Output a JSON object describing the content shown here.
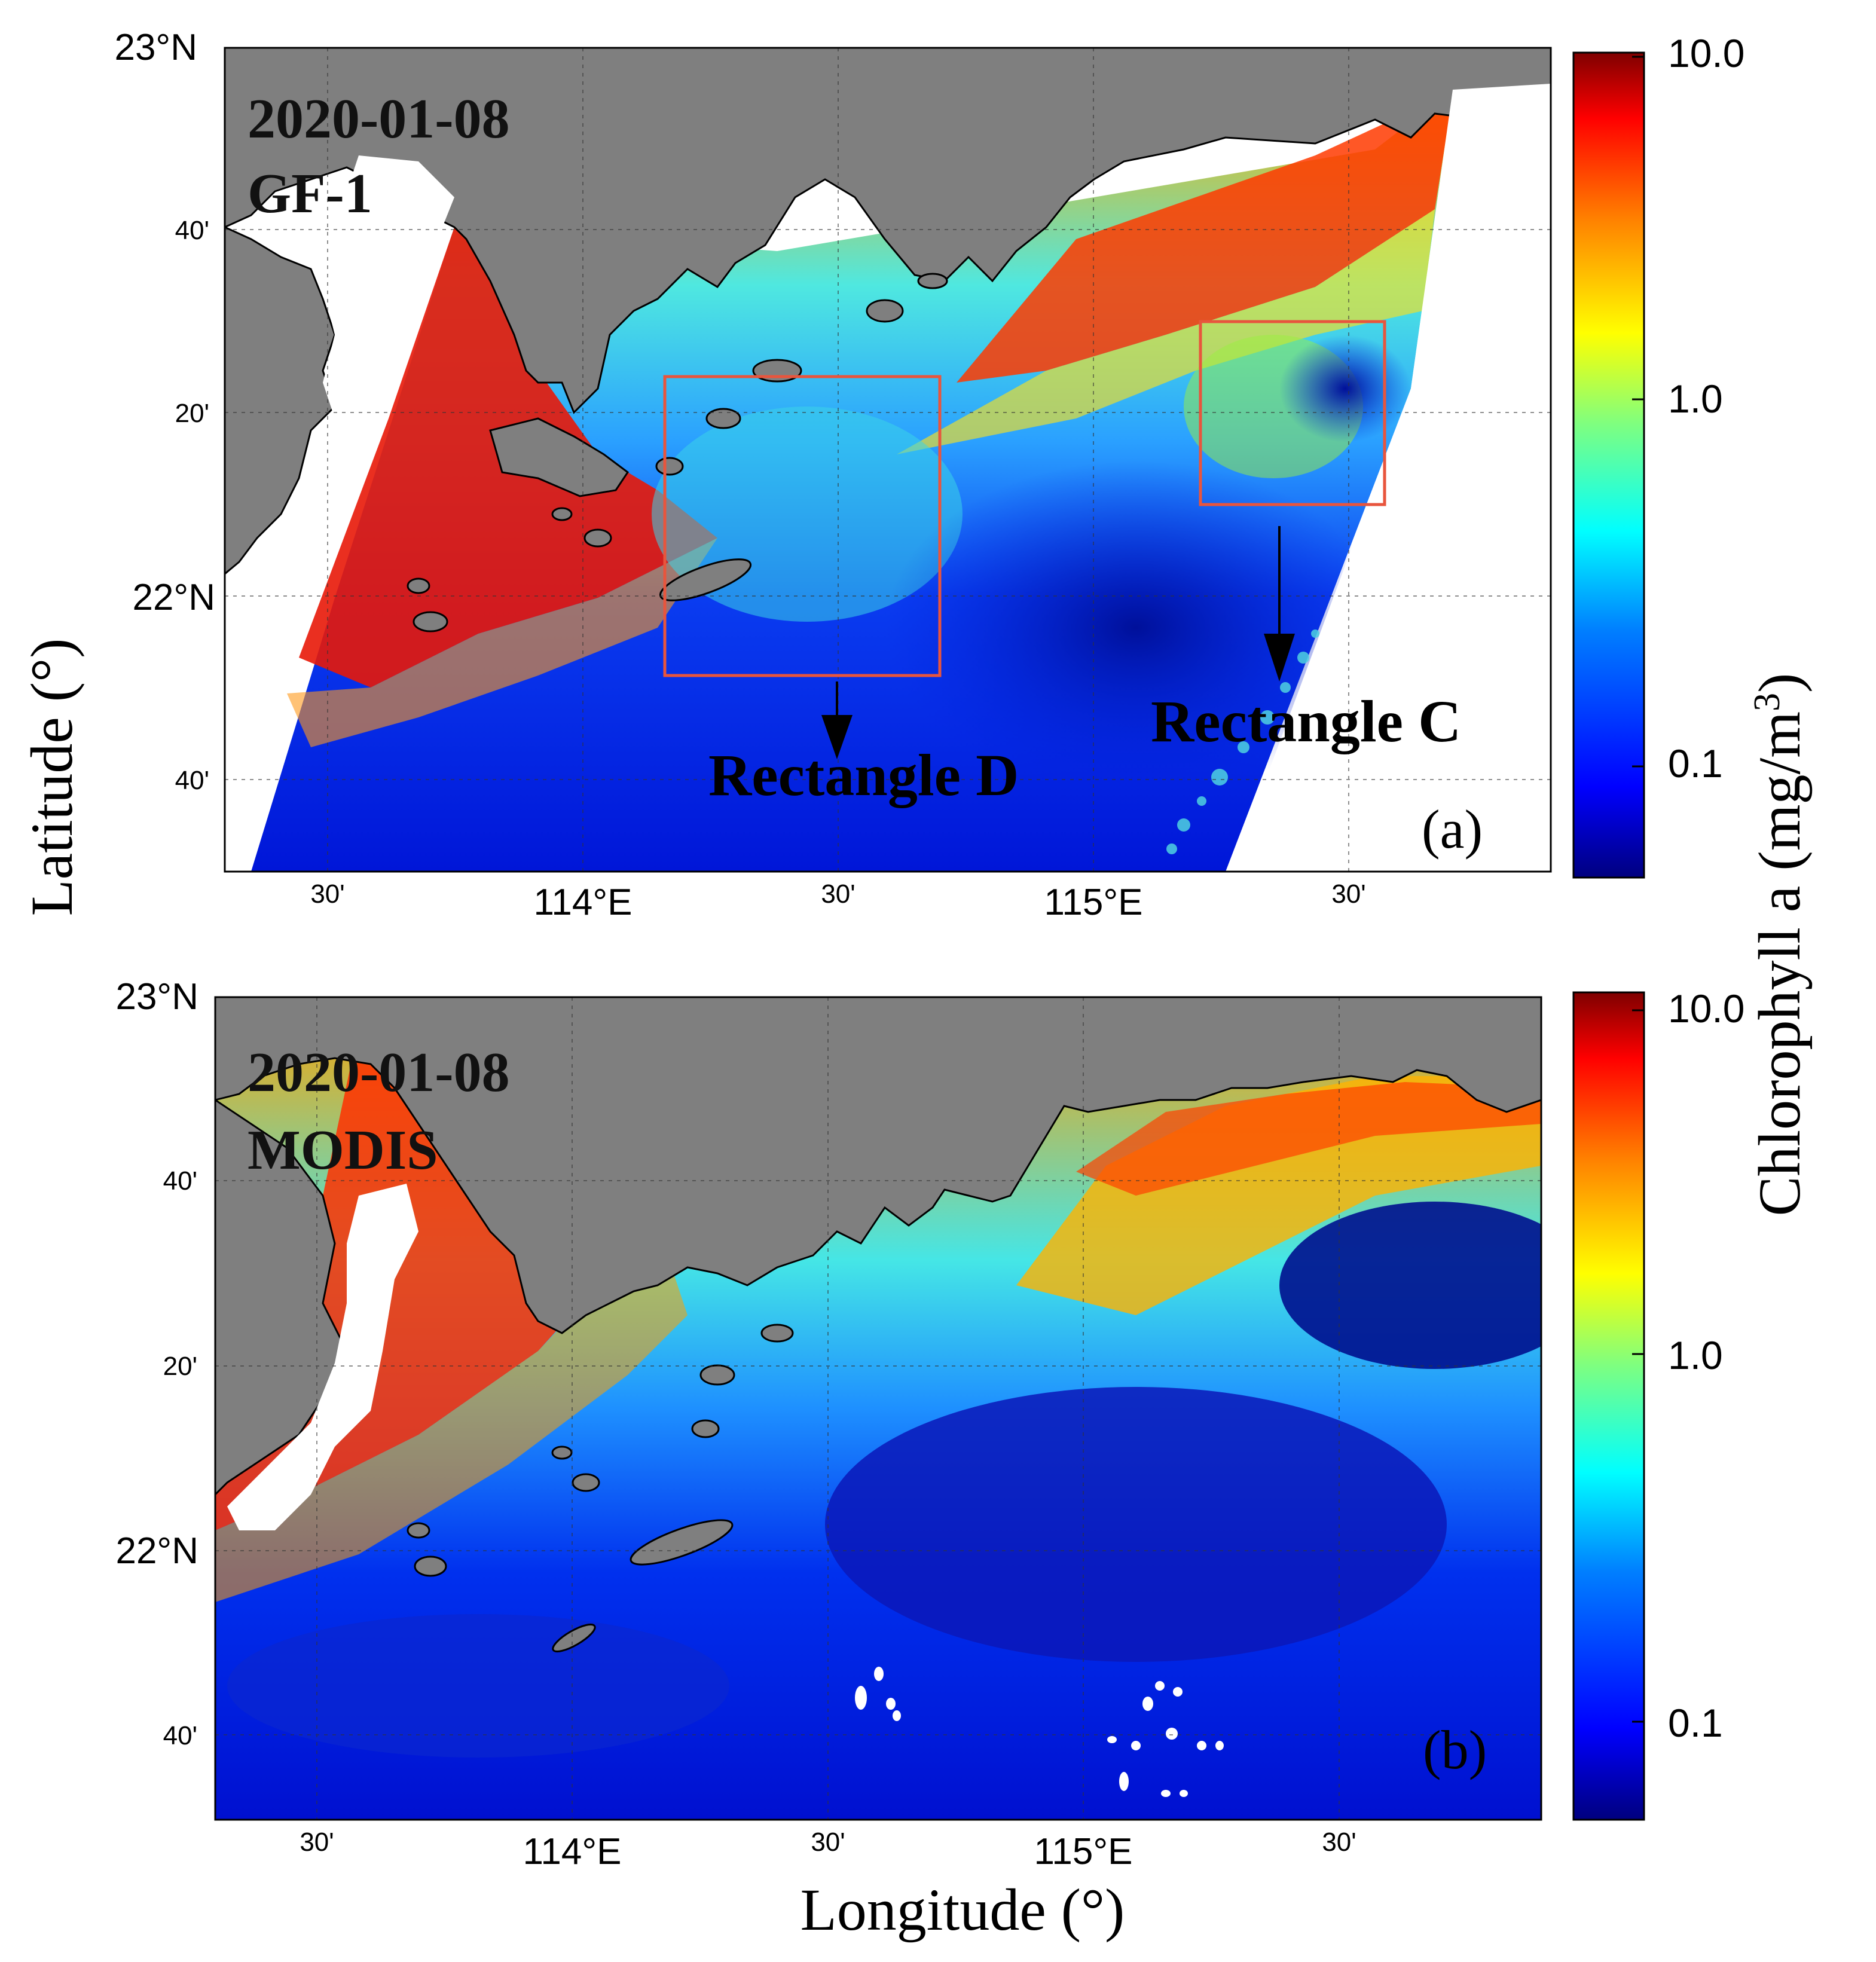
{
  "colors": {
    "land": "#7f7f7f",
    "nodata": "#ffffff",
    "box": "#e8553d",
    "colormap": [
      "#00007f",
      "#0000ff",
      "#007fff",
      "#00ffff",
      "#7fff7f",
      "#ffff00",
      "#ff7f00",
      "#ff0000",
      "#7f0000"
    ]
  },
  "axes": {
    "xlabel": "Longitude (°)",
    "ylabel": "Latitude (°)",
    "lat_ticks": [
      "23°N",
      "40'",
      "20'",
      "22°N",
      "40'"
    ],
    "lon_ticks": [
      "30'",
      "114°E",
      "30'",
      "115°E",
      "30'"
    ]
  },
  "colorbar": {
    "label_main": "Chlorophyll a  (mg/m",
    "label_sup": "3",
    "label_close": ")",
    "ticks": [
      "10.0",
      "1.0",
      "0.1"
    ],
    "scale": "log"
  },
  "panels": {
    "a": {
      "date": "2020-01-08",
      "sensor": "GF-1",
      "tag": "(a)",
      "rect_c": "Rectangle C",
      "rect_d": "Rectangle D"
    },
    "b": {
      "date": "2020-01-08",
      "sensor": "MODIS",
      "tag": "(b)"
    }
  }
}
